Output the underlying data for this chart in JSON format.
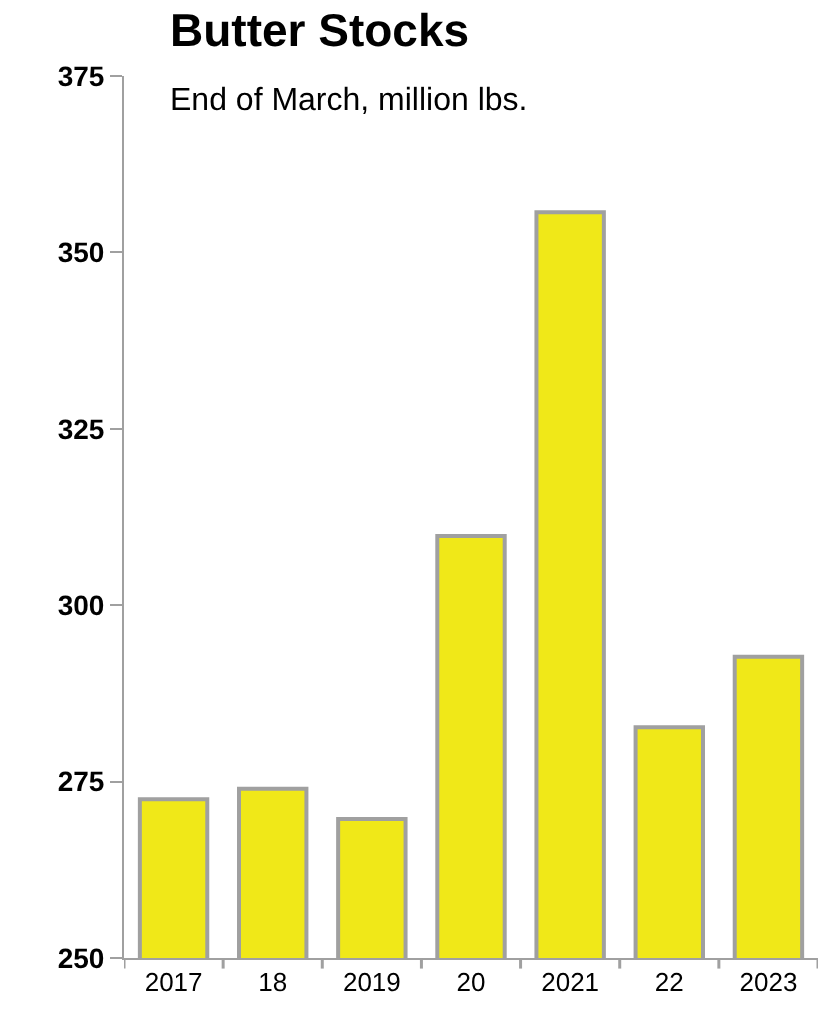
{
  "chart_data": {
    "type": "bar",
    "title": "Butter Stocks",
    "subtitle": "End of March, million lbs.",
    "categories": [
      "2017",
      "18",
      "2019",
      "20",
      "2021",
      "22",
      "2023"
    ],
    "values": [
      272.5,
      274,
      269.7,
      309.8,
      355.7,
      282.7,
      292.7
    ],
    "color": "#f0e818",
    "ylim": [
      250,
      375
    ],
    "yticks": [
      250,
      275,
      300,
      325,
      350,
      375
    ]
  }
}
